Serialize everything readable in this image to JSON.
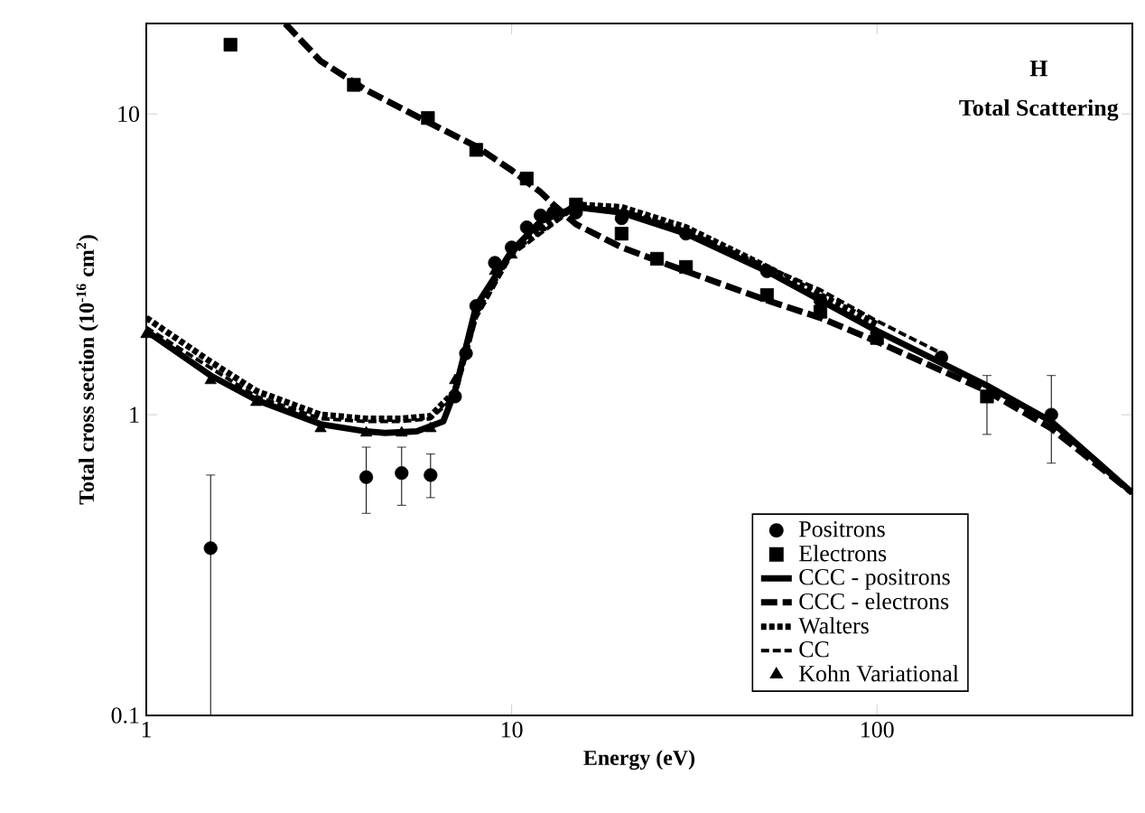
{
  "chart_data": {
    "type": "line",
    "xlabel": "Energy (eV)",
    "ylabel": "Total cross section (10$^{-16}$ cm$^{2}$)",
    "annotations": [
      "**H**",
      "**Total Scattering**"
    ],
    "log": "xy",
    "xlim": [
      1,
      500
    ],
    "ylim": [
      0.1,
      20
    ],
    "xticks": [
      1,
      10,
      100
    ],
    "yticks": [
      0.1,
      1,
      10
    ],
    "grid": false,
    "legend": "bottom right",
    "series": [
      {
        "name": "Positrons",
        "type": "scatter",
        "marker": "circle",
        "color": "#000000",
        "x": [
          1.5,
          4,
          5,
          6,
          7,
          7.5,
          8,
          9,
          10,
          11,
          12,
          13,
          15,
          20,
          30,
          50,
          70,
          150,
          300
        ],
        "values": [
          0.36,
          0.62,
          0.64,
          0.63,
          1.15,
          1.6,
          2.3,
          3.2,
          3.6,
          4.2,
          4.6,
          4.7,
          4.7,
          4.5,
          4.0,
          3.0,
          2.4,
          1.55,
          1.0
        ],
        "errors": [
          [
            0.1,
            0.63
          ],
          [
            0.47,
            0.78
          ],
          [
            0.5,
            0.78
          ],
          [
            0.53,
            0.74
          ],
          null,
          null,
          null,
          null,
          null,
          null,
          null,
          null,
          null,
          null,
          null,
          null,
          null,
          null,
          [
            0.69,
            1.35
          ]
        ]
      },
      {
        "name": "Electrons",
        "type": "scatter",
        "marker": "square",
        "color": "#000000",
        "x": [
          1.7,
          3.7,
          5.9,
          8,
          11,
          15,
          20,
          25,
          30,
          50,
          70,
          100,
          200
        ],
        "values": [
          17,
          12.5,
          9.7,
          7.6,
          6.1,
          5.0,
          4.0,
          3.3,
          3.1,
          2.5,
          2.2,
          1.8,
          1.15
        ],
        "errors": [
          null,
          null,
          null,
          null,
          null,
          null,
          null,
          null,
          null,
          null,
          null,
          null,
          [
            0.86,
            1.35
          ]
        ]
      },
      {
        "name": "CCC - positrons",
        "line_style": "solid",
        "color": "#000000",
        "x": [
          1,
          1.5,
          2,
          3,
          4,
          4.5,
          5.5,
          6.5,
          7,
          8,
          10,
          12,
          15,
          20,
          30,
          50,
          100,
          200,
          300,
          500
        ],
        "values": [
          1.9,
          1.35,
          1.12,
          0.93,
          0.88,
          0.87,
          0.88,
          0.95,
          1.2,
          2.3,
          3.5,
          4.4,
          4.9,
          4.7,
          4.0,
          3.0,
          1.9,
          1.25,
          0.95,
          0.55
        ]
      },
      {
        "name": "CCC - electrons",
        "line_style": "dashed",
        "color": "#000000",
        "x": [
          2.4,
          3,
          4,
          6,
          8,
          10,
          12,
          13,
          15,
          20,
          30,
          50,
          70,
          100,
          200,
          300,
          500
        ],
        "values": [
          20,
          15,
          12,
          9.3,
          7.8,
          6.5,
          5.5,
          5.0,
          4.3,
          3.6,
          3.0,
          2.4,
          2.1,
          1.75,
          1.2,
          0.9,
          0.55
        ]
      },
      {
        "name": "Walters",
        "line_style": "dotted",
        "color": "#000000",
        "x": [
          1,
          1.5,
          2,
          3,
          4,
          5,
          6,
          7,
          8,
          10,
          15,
          20,
          30,
          50,
          70,
          100
        ],
        "values": [
          2.1,
          1.5,
          1.2,
          1.0,
          0.97,
          0.97,
          0.99,
          1.2,
          2.2,
          3.5,
          5.0,
          4.9,
          4.2,
          3.1,
          2.5,
          2.0
        ]
      },
      {
        "name": "CC",
        "line_style": "dashed",
        "color": "#000000",
        "x": [
          1,
          2,
          3,
          4,
          5,
          6,
          7,
          8,
          10,
          15,
          20,
          30,
          50,
          70,
          100,
          150
        ],
        "values": [
          1.95,
          1.15,
          0.97,
          0.95,
          0.95,
          0.97,
          1.15,
          2.1,
          3.4,
          4.9,
          4.8,
          4.1,
          3.1,
          2.6,
          2.05,
          1.6
        ]
      },
      {
        "name": "Kohn Variational",
        "type": "scatter",
        "marker": "triangle",
        "color": "#000000",
        "x": [
          1,
          1.5,
          2,
          3,
          4,
          5,
          6,
          7,
          8,
          9,
          10,
          12
        ],
        "values": [
          1.85,
          1.3,
          1.1,
          0.9,
          0.87,
          0.87,
          0.9,
          1.3,
          null,
          3.0,
          3.4,
          4.2
        ]
      }
    ]
  }
}
